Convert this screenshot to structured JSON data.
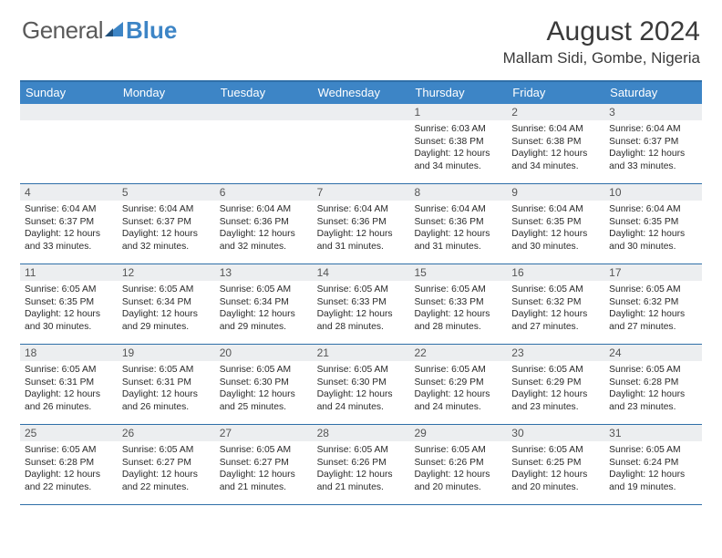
{
  "logo": {
    "text1": "General",
    "text2": "Blue"
  },
  "colors": {
    "accent": "#3d85c6",
    "rule": "#2f6fa8",
    "daynum_bg": "#eceef0",
    "text": "#2a2a2a"
  },
  "header": {
    "month": "August 2024",
    "location": "Mallam Sidi, Gombe, Nigeria"
  },
  "day_names": [
    "Sunday",
    "Monday",
    "Tuesday",
    "Wednesday",
    "Thursday",
    "Friday",
    "Saturday"
  ],
  "weeks": [
    [
      {
        "n": "",
        "sunrise": "",
        "sunset": "",
        "daylight": ""
      },
      {
        "n": "",
        "sunrise": "",
        "sunset": "",
        "daylight": ""
      },
      {
        "n": "",
        "sunrise": "",
        "sunset": "",
        "daylight": ""
      },
      {
        "n": "",
        "sunrise": "",
        "sunset": "",
        "daylight": ""
      },
      {
        "n": "1",
        "sunrise": "Sunrise: 6:03 AM",
        "sunset": "Sunset: 6:38 PM",
        "daylight": "Daylight: 12 hours and 34 minutes."
      },
      {
        "n": "2",
        "sunrise": "Sunrise: 6:04 AM",
        "sunset": "Sunset: 6:38 PM",
        "daylight": "Daylight: 12 hours and 34 minutes."
      },
      {
        "n": "3",
        "sunrise": "Sunrise: 6:04 AM",
        "sunset": "Sunset: 6:37 PM",
        "daylight": "Daylight: 12 hours and 33 minutes."
      }
    ],
    [
      {
        "n": "4",
        "sunrise": "Sunrise: 6:04 AM",
        "sunset": "Sunset: 6:37 PM",
        "daylight": "Daylight: 12 hours and 33 minutes."
      },
      {
        "n": "5",
        "sunrise": "Sunrise: 6:04 AM",
        "sunset": "Sunset: 6:37 PM",
        "daylight": "Daylight: 12 hours and 32 minutes."
      },
      {
        "n": "6",
        "sunrise": "Sunrise: 6:04 AM",
        "sunset": "Sunset: 6:36 PM",
        "daylight": "Daylight: 12 hours and 32 minutes."
      },
      {
        "n": "7",
        "sunrise": "Sunrise: 6:04 AM",
        "sunset": "Sunset: 6:36 PM",
        "daylight": "Daylight: 12 hours and 31 minutes."
      },
      {
        "n": "8",
        "sunrise": "Sunrise: 6:04 AM",
        "sunset": "Sunset: 6:36 PM",
        "daylight": "Daylight: 12 hours and 31 minutes."
      },
      {
        "n": "9",
        "sunrise": "Sunrise: 6:04 AM",
        "sunset": "Sunset: 6:35 PM",
        "daylight": "Daylight: 12 hours and 30 minutes."
      },
      {
        "n": "10",
        "sunrise": "Sunrise: 6:04 AM",
        "sunset": "Sunset: 6:35 PM",
        "daylight": "Daylight: 12 hours and 30 minutes."
      }
    ],
    [
      {
        "n": "11",
        "sunrise": "Sunrise: 6:05 AM",
        "sunset": "Sunset: 6:35 PM",
        "daylight": "Daylight: 12 hours and 30 minutes."
      },
      {
        "n": "12",
        "sunrise": "Sunrise: 6:05 AM",
        "sunset": "Sunset: 6:34 PM",
        "daylight": "Daylight: 12 hours and 29 minutes."
      },
      {
        "n": "13",
        "sunrise": "Sunrise: 6:05 AM",
        "sunset": "Sunset: 6:34 PM",
        "daylight": "Daylight: 12 hours and 29 minutes."
      },
      {
        "n": "14",
        "sunrise": "Sunrise: 6:05 AM",
        "sunset": "Sunset: 6:33 PM",
        "daylight": "Daylight: 12 hours and 28 minutes."
      },
      {
        "n": "15",
        "sunrise": "Sunrise: 6:05 AM",
        "sunset": "Sunset: 6:33 PM",
        "daylight": "Daylight: 12 hours and 28 minutes."
      },
      {
        "n": "16",
        "sunrise": "Sunrise: 6:05 AM",
        "sunset": "Sunset: 6:32 PM",
        "daylight": "Daylight: 12 hours and 27 minutes."
      },
      {
        "n": "17",
        "sunrise": "Sunrise: 6:05 AM",
        "sunset": "Sunset: 6:32 PM",
        "daylight": "Daylight: 12 hours and 27 minutes."
      }
    ],
    [
      {
        "n": "18",
        "sunrise": "Sunrise: 6:05 AM",
        "sunset": "Sunset: 6:31 PM",
        "daylight": "Daylight: 12 hours and 26 minutes."
      },
      {
        "n": "19",
        "sunrise": "Sunrise: 6:05 AM",
        "sunset": "Sunset: 6:31 PM",
        "daylight": "Daylight: 12 hours and 26 minutes."
      },
      {
        "n": "20",
        "sunrise": "Sunrise: 6:05 AM",
        "sunset": "Sunset: 6:30 PM",
        "daylight": "Daylight: 12 hours and 25 minutes."
      },
      {
        "n": "21",
        "sunrise": "Sunrise: 6:05 AM",
        "sunset": "Sunset: 6:30 PM",
        "daylight": "Daylight: 12 hours and 24 minutes."
      },
      {
        "n": "22",
        "sunrise": "Sunrise: 6:05 AM",
        "sunset": "Sunset: 6:29 PM",
        "daylight": "Daylight: 12 hours and 24 minutes."
      },
      {
        "n": "23",
        "sunrise": "Sunrise: 6:05 AM",
        "sunset": "Sunset: 6:29 PM",
        "daylight": "Daylight: 12 hours and 23 minutes."
      },
      {
        "n": "24",
        "sunrise": "Sunrise: 6:05 AM",
        "sunset": "Sunset: 6:28 PM",
        "daylight": "Daylight: 12 hours and 23 minutes."
      }
    ],
    [
      {
        "n": "25",
        "sunrise": "Sunrise: 6:05 AM",
        "sunset": "Sunset: 6:28 PM",
        "daylight": "Daylight: 12 hours and 22 minutes."
      },
      {
        "n": "26",
        "sunrise": "Sunrise: 6:05 AM",
        "sunset": "Sunset: 6:27 PM",
        "daylight": "Daylight: 12 hours and 22 minutes."
      },
      {
        "n": "27",
        "sunrise": "Sunrise: 6:05 AM",
        "sunset": "Sunset: 6:27 PM",
        "daylight": "Daylight: 12 hours and 21 minutes."
      },
      {
        "n": "28",
        "sunrise": "Sunrise: 6:05 AM",
        "sunset": "Sunset: 6:26 PM",
        "daylight": "Daylight: 12 hours and 21 minutes."
      },
      {
        "n": "29",
        "sunrise": "Sunrise: 6:05 AM",
        "sunset": "Sunset: 6:26 PM",
        "daylight": "Daylight: 12 hours and 20 minutes."
      },
      {
        "n": "30",
        "sunrise": "Sunrise: 6:05 AM",
        "sunset": "Sunset: 6:25 PM",
        "daylight": "Daylight: 12 hours and 20 minutes."
      },
      {
        "n": "31",
        "sunrise": "Sunrise: 6:05 AM",
        "sunset": "Sunset: 6:24 PM",
        "daylight": "Daylight: 12 hours and 19 minutes."
      }
    ]
  ]
}
